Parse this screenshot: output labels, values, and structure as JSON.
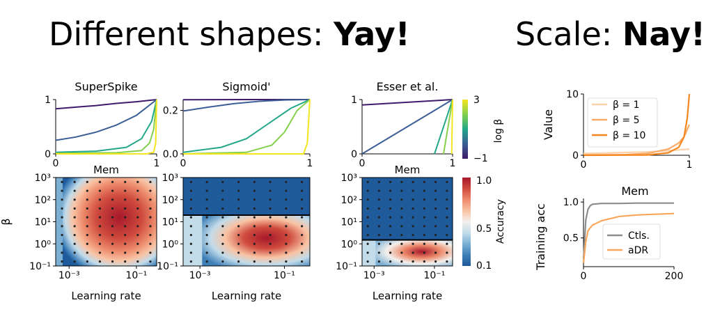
{
  "headline_left": {
    "text": "Different shapes: ",
    "emph": "Yay!"
  },
  "headline_right": {
    "text": "Scale: ",
    "emph": "Nay!"
  },
  "chart_data": [
    {
      "type": "line",
      "title": "SuperSpike",
      "xlabel": "Mem",
      "ylabel": "",
      "xlim": [
        0,
        1
      ],
      "ylim": [
        0,
        1
      ],
      "xticks": [
        "0",
        "1"
      ],
      "yticks": [
        "0",
        "1"
      ],
      "series": [
        {
          "beta": 0.1,
          "values_x": [
            0,
            0.2,
            0.4,
            0.6,
            0.8,
            1
          ],
          "values_y": [
            0.83,
            0.86,
            0.89,
            0.93,
            0.96,
            1
          ]
        },
        {
          "beta": 1,
          "values_x": [
            0,
            0.2,
            0.4,
            0.6,
            0.8,
            1
          ],
          "values_y": [
            0.25,
            0.31,
            0.4,
            0.53,
            0.71,
            1
          ]
        },
        {
          "beta": 5,
          "values_x": [
            0,
            0.4,
            0.7,
            0.85,
            0.95,
            1
          ],
          "values_y": [
            0.03,
            0.05,
            0.12,
            0.28,
            0.6,
            1
          ]
        },
        {
          "beta": 10,
          "values_x": [
            0,
            0.6,
            0.85,
            0.93,
            0.97,
            1
          ],
          "values_y": [
            0.01,
            0.02,
            0.06,
            0.2,
            0.45,
            1
          ]
        },
        {
          "beta": 100,
          "values_x": [
            0,
            0.9,
            0.97,
            0.99,
            1
          ],
          "values_y": [
            0,
            0.001,
            0.03,
            0.2,
            1
          ]
        }
      ]
    },
    {
      "type": "line",
      "title": "Sigmoid'",
      "xlabel": "",
      "ylabel": "",
      "xlim": [
        0,
        1
      ],
      "ylim": [
        0,
        0.25
      ],
      "xticks": [
        "0",
        "1"
      ],
      "yticks": [
        "0.0",
        "0.2"
      ],
      "series": [
        {
          "beta": 0.1,
          "values_x": [
            0,
            0.5,
            1
          ],
          "values_y": [
            0.249,
            0.25,
            0.25
          ]
        },
        {
          "beta": 1,
          "values_x": [
            0,
            0.2,
            0.4,
            0.6,
            0.8,
            1
          ],
          "values_y": [
            0.197,
            0.215,
            0.231,
            0.242,
            0.248,
            0.25
          ]
        },
        {
          "beta": 5,
          "values_x": [
            0,
            0.3,
            0.5,
            0.7,
            0.85,
            1
          ],
          "values_y": [
            0.007,
            0.03,
            0.07,
            0.15,
            0.21,
            0.25
          ]
        },
        {
          "beta": 10,
          "values_x": [
            0,
            0.5,
            0.7,
            0.8,
            0.9,
            1
          ],
          "values_y": [
            0,
            0.007,
            0.04,
            0.1,
            0.2,
            0.25
          ]
        },
        {
          "beta": 100,
          "values_x": [
            0,
            0.95,
            0.98,
            1
          ],
          "values_y": [
            0,
            0,
            0.05,
            0.25
          ]
        }
      ]
    },
    {
      "type": "line",
      "title": "Esser et al.",
      "xlabel": "Mem",
      "ylabel": "",
      "xlim": [
        0,
        1
      ],
      "ylim": [
        0,
        1
      ],
      "xticks": [
        "0",
        "1"
      ],
      "yticks": [
        "0",
        "1"
      ],
      "colorbar": {
        "label": "log β",
        "ticks": [
          "3",
          "−1"
        ]
      },
      "series": [
        {
          "beta": 0.1,
          "values_x": [
            0,
            1
          ],
          "values_y": [
            0.9,
            1
          ]
        },
        {
          "beta": 1,
          "values_x": [
            0,
            1
          ],
          "values_y": [
            0,
            1
          ]
        },
        {
          "beta": 5,
          "values_x": [
            0.8,
            1
          ],
          "values_y": [
            0,
            1
          ]
        },
        {
          "beta": 10,
          "values_x": [
            0.9,
            1
          ],
          "values_y": [
            0,
            1
          ]
        },
        {
          "beta": 100,
          "values_x": [
            0.99,
            1
          ],
          "values_y": [
            0,
            1
          ]
        }
      ]
    },
    {
      "type": "heatmap",
      "title": "",
      "xlabel": "Learning rate",
      "ylabel": "β",
      "xscale": "log",
      "yscale": "log",
      "xlim": [
        0.0004,
        0.4
      ],
      "ylim": [
        0.1,
        1000
      ],
      "xticks": [
        "10⁻³",
        "10⁻¹"
      ],
      "yticks": [
        "10⁻¹",
        "10⁰",
        "10¹",
        "10²",
        "10³"
      ],
      "colorbar": {
        "label": "Accuracy",
        "range": [
          0.1,
          1.0
        ],
        "ticks": [
          "1.0",
          "0.5",
          "0.1"
        ]
      },
      "note": "SuperSpike: high accuracy region centered near lr≈1e-2..1e-1 for β between 1e0 and 1e2"
    },
    {
      "type": "heatmap",
      "title": "",
      "xlabel": "Learning rate",
      "ylabel": "",
      "xscale": "log",
      "yscale": "log",
      "xlim": [
        0.0004,
        0.4
      ],
      "ylim": [
        0.1,
        1000
      ],
      "note": "Sigmoid': high accuracy only for β ≲ 20 (β≈1e1), low accuracy above"
    },
    {
      "type": "heatmap",
      "title": "",
      "xlabel": "Learning rate",
      "ylabel": "",
      "xscale": "log",
      "yscale": "log",
      "xlim": [
        0.0004,
        0.4
      ],
      "ylim": [
        0.1,
        1000
      ],
      "note": "Esser et al.: high accuracy only for β ≲ 1, low accuracy above"
    },
    {
      "type": "line",
      "title": "",
      "xlabel": "Mem",
      "ylabel": "Value",
      "xlim": [
        0,
        1
      ],
      "ylim": [
        0,
        10
      ],
      "xticks": [
        "0",
        "1"
      ],
      "yticks": [
        "0",
        "10"
      ],
      "legend": "upper-left",
      "series": [
        {
          "name": "β = 1",
          "color": "#fcd2ab",
          "values_x": [
            0,
            0.2,
            0.4,
            0.6,
            0.8,
            1
          ],
          "values_y": [
            0.3,
            0.35,
            0.45,
            0.55,
            0.75,
            1.0
          ]
        },
        {
          "name": "β = 5",
          "color": "#f9aa66",
          "values_x": [
            0,
            0.4,
            0.6,
            0.8,
            0.9,
            0.95,
            1
          ],
          "values_y": [
            0.05,
            0.1,
            0.3,
            1,
            2,
            3,
            5
          ]
        },
        {
          "name": "β = 10",
          "color": "#f5861f",
          "values_x": [
            0,
            0.6,
            0.8,
            0.9,
            0.95,
            0.98,
            1
          ],
          "values_y": [
            0,
            0.05,
            0.4,
            1.3,
            3,
            6,
            10
          ]
        }
      ]
    },
    {
      "type": "line",
      "title": "",
      "xlabel": "",
      "ylabel": "Training acc",
      "xlim": [
        0,
        200
      ],
      "ylim": [
        0.1,
        1.05
      ],
      "xticks": [
        "0",
        "200"
      ],
      "yticks": [
        "0.5",
        "1.0"
      ],
      "legend": "lower-right",
      "series": [
        {
          "name": "Ctls.",
          "color": "#8c8c8c",
          "values_x": [
            0,
            5,
            10,
            15,
            20,
            40,
            80,
            120,
            160,
            200
          ],
          "values_y": [
            0.2,
            0.75,
            0.9,
            0.95,
            0.97,
            0.98,
            0.98,
            0.985,
            0.985,
            0.985
          ]
        },
        {
          "name": "aDR",
          "color": "#f9a65a",
          "values_x": [
            0,
            5,
            10,
            20,
            40,
            60,
            80,
            120,
            160,
            200
          ],
          "values_y": [
            0.15,
            0.45,
            0.6,
            0.68,
            0.74,
            0.77,
            0.8,
            0.82,
            0.83,
            0.84
          ]
        }
      ]
    }
  ]
}
